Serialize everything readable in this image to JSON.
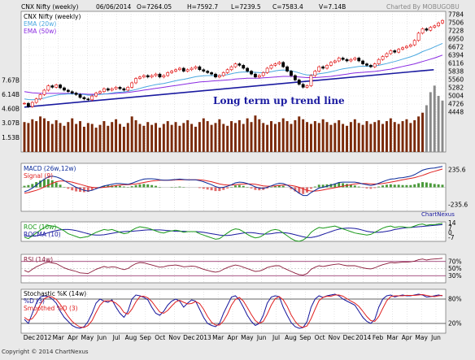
{
  "header": {
    "symbol": "CNX Nifty (weekly)",
    "date": "06/06/2014",
    "open": "O=7264.05",
    "high": "H=7592.7",
    "low": "L=7239.5",
    "close": "C=7583.4",
    "volume": "V=7.14B",
    "credit": "Charted By MOBUGOBU"
  },
  "footer": {
    "copyright": "Copyright © 2014 ChartNexus",
    "watermark": "ChartNexus"
  },
  "colors": {
    "up_candle": "#e00000",
    "down_candle": "#000000",
    "ema20": "#4aa8e0",
    "ema50": "#8a2be2",
    "trend": "#1a1aa0",
    "volume": "#7a2a0a",
    "volume_recent": "#8a8a8a",
    "macd": "#0a2a9a",
    "signal": "#e02020",
    "roc": "#1a9a1a",
    "rocma": "#1a1aa0",
    "rsi": "#8a1a3a",
    "stoch_k": "#1a1aa0",
    "stoch_d": "#e02020",
    "stoch_sd": "#e02020"
  },
  "chart_data": {
    "type": "line",
    "x_labels": [
      "Dec",
      "2012",
      "Mar",
      "Apr",
      "May",
      "Jun",
      "Jul",
      "Aug",
      "Sep",
      "Oct",
      "Nov",
      "Dec",
      "2013",
      "Mar",
      "Apr",
      "May",
      "Jun",
      "Jul",
      "Aug",
      "Sep",
      "Oct",
      "Nov",
      "Dec",
      "2014",
      "Feb",
      "Mar",
      "Apr",
      "May",
      "Jun"
    ],
    "price": {
      "legend": [
        "CNX Nifty (weekly)",
        "EMA (20w)",
        "EMA (50w)"
      ],
      "price_ticks": [
        "7784",
        "7506",
        "7228",
        "6950",
        "6672",
        "6394",
        "6116",
        "5838",
        "5560",
        "5282",
        "5004",
        "4726",
        "4448"
      ],
      "volume_ticks": [
        "7.67B",
        "6.14B",
        "4.60B",
        "3.07B",
        "1.53B"
      ],
      "ylim": [
        4448,
        7784
      ],
      "close": [
        4750,
        4640,
        4780,
        4900,
        5050,
        5200,
        5350,
        5300,
        5380,
        5280,
        5200,
        5150,
        5100,
        5050,
        4950,
        4900,
        4870,
        5000,
        5100,
        5150,
        5250,
        5200,
        5250,
        5300,
        5250,
        5200,
        5300,
        5450,
        5600,
        5650,
        5700,
        5650,
        5700,
        5750,
        5650,
        5700,
        5800,
        5850,
        5900,
        5950,
        5850,
        5900,
        5950,
        6000,
        5900,
        5850,
        5800,
        5750,
        5650,
        5700,
        5800,
        5900,
        6000,
        6100,
        6050,
        5950,
        5850,
        5750,
        5650,
        5700,
        5800,
        5950,
        6050,
        6100,
        6150,
        6000,
        5850,
        5700,
        5550,
        5400,
        5300,
        5350,
        5700,
        5850,
        6000,
        5950,
        6050,
        6150,
        6200,
        6300,
        6250,
        6200,
        6250,
        6300,
        6200,
        6100,
        6050,
        6000,
        6100,
        6250,
        6350,
        6450,
        6550,
        6500,
        6600,
        6650,
        6700,
        6750,
        6900,
        7150,
        7300,
        7250,
        7350,
        7400,
        7500,
        7583
      ],
      "ema20": [
        4900,
        4880,
        4870,
        4880,
        4900,
        4930,
        4970,
        5000,
        5030,
        5050,
        5060,
        5070,
        5070,
        5070,
        5060,
        5050,
        5030,
        5030,
        5040,
        5050,
        5070,
        5080,
        5100,
        5120,
        5130,
        5140,
        5160,
        5190,
        5220,
        5260,
        5300,
        5330,
        5360,
        5390,
        5410,
        5430,
        5460,
        5490,
        5520,
        5550,
        5570,
        5600,
        5630,
        5660,
        5680,
        5690,
        5700,
        5700,
        5700,
        5700,
        5710,
        5730,
        5760,
        5790,
        5810,
        5820,
        5820,
        5820,
        5810,
        5800,
        5800,
        5810,
        5830,
        5860,
        5880,
        5890,
        5880,
        5860,
        5830,
        5790,
        5750,
        5720,
        5720,
        5730,
        5760,
        5780,
        5800,
        5830,
        5860,
        5900,
        5930,
        5950,
        5970,
        5990,
        6010,
        6020,
        6020,
        6020,
        6030,
        6050,
        6080,
        6110,
        6150,
        6180,
        6220,
        6260,
        6300,
        6340,
        6390,
        6450,
        6520,
        6570,
        6620,
        6680,
        6740,
        6800
      ],
      "ema50": [
        5150,
        5130,
        5110,
        5100,
        5090,
        5090,
        5090,
        5090,
        5090,
        5090,
        5090,
        5090,
        5090,
        5080,
        5080,
        5070,
        5060,
        5060,
        5060,
        5060,
        5070,
        5070,
        5080,
        5090,
        5100,
        5110,
        5120,
        5140,
        5160,
        5180,
        5200,
        5220,
        5240,
        5260,
        5280,
        5300,
        5320,
        5340,
        5360,
        5380,
        5400,
        5420,
        5440,
        5460,
        5480,
        5490,
        5500,
        5510,
        5520,
        5530,
        5540,
        5550,
        5560,
        5580,
        5590,
        5600,
        5610,
        5610,
        5610,
        5610,
        5620,
        5630,
        5640,
        5650,
        5660,
        5670,
        5670,
        5670,
        5660,
        5650,
        5640,
        5630,
        5630,
        5630,
        5640,
        5650,
        5660,
        5670,
        5690,
        5710,
        5730,
        5750,
        5770,
        5790,
        5800,
        5810,
        5820,
        5830,
        5840,
        5860,
        5880,
        5900,
        5920,
        5950,
        5980,
        6010,
        6040,
        6070,
        6100,
        6140,
        6180,
        6220,
        6260,
        6300,
        6350,
        6400
      ],
      "trendline": [
        [
          0,
          4620
        ],
        [
          102,
          5900
        ]
      ],
      "annotation": "Long term up trend line",
      "volume": [
        3.2,
        3.1,
        3.5,
        3.3,
        3.8,
        3.6,
        3.3,
        3.0,
        3.4,
        3.1,
        2.8,
        3.2,
        3.6,
        3.0,
        3.3,
        2.7,
        3.1,
        3.0,
        2.6,
        2.9,
        3.3,
        2.8,
        3.2,
        3.5,
        3.0,
        2.7,
        3.1,
        3.8,
        3.4,
        3.0,
        2.8,
        3.2,
        2.9,
        3.1,
        2.6,
        3.0,
        3.3,
        2.9,
        3.2,
        2.8,
        3.1,
        3.4,
        3.0,
        2.7,
        3.2,
        3.6,
        3.3,
        2.9,
        3.1,
        3.5,
        3.0,
        2.8,
        3.3,
        3.1,
        3.4,
        3.0,
        3.6,
        3.2,
        3.9,
        3.5,
        3.1,
        2.9,
        3.3,
        3.0,
        3.2,
        3.6,
        3.3,
        3.0,
        3.4,
        3.8,
        3.5,
        3.2,
        3.0,
        3.3,
        3.1,
        3.5,
        3.2,
        2.9,
        3.1,
        3.4,
        3.0,
        2.8,
        3.2,
        3.5,
        3.1,
        2.9,
        3.3,
        3.0,
        3.2,
        3.4,
        3.0,
        3.3,
        3.6,
        3.2,
        3.0,
        3.3,
        3.5,
        3.1,
        3.4,
        3.8,
        4.2,
        5.0,
        6.4,
        7.1,
        6.0,
        5.5
      ]
    },
    "macd": {
      "legend": [
        "MACD (26w,12w)",
        "Signal (9)"
      ],
      "ticks": [
        "235.6",
        "0",
        "-235.6"
      ],
      "ylim": [
        -300,
        300
      ],
      "macd": [
        -60,
        -40,
        -10,
        30,
        70,
        110,
        140,
        150,
        140,
        120,
        90,
        60,
        30,
        0,
        -20,
        -40,
        -50,
        -40,
        -20,
        0,
        20,
        30,
        40,
        50,
        50,
        45,
        40,
        55,
        75,
        95,
        110,
        115,
        115,
        110,
        100,
        95,
        95,
        100,
        105,
        110,
        105,
        100,
        100,
        100,
        90,
        75,
        55,
        35,
        10,
        -5,
        0,
        15,
        35,
        60,
        70,
        65,
        50,
        30,
        5,
        -10,
        -15,
        0,
        20,
        40,
        55,
        50,
        30,
        0,
        -40,
        -80,
        -110,
        -110,
        -70,
        -40,
        -10,
        0,
        15,
        30,
        45,
        65,
        70,
        70,
        70,
        70,
        60,
        45,
        35,
        25,
        35,
        55,
        75,
        95,
        110,
        115,
        125,
        130,
        140,
        150,
        170,
        200,
        230,
        245,
        255,
        260,
        270,
        280
      ],
      "signal": [
        -80,
        -70,
        -55,
        -40,
        -20,
        5,
        30,
        55,
        75,
        85,
        85,
        80,
        70,
        55,
        40,
        25,
        10,
        0,
        -5,
        -5,
        0,
        5,
        15,
        25,
        30,
        35,
        35,
        40,
        45,
        55,
        65,
        75,
        85,
        90,
        95,
        95,
        95,
        95,
        100,
        100,
        100,
        100,
        100,
        100,
        100,
        95,
        85,
        75,
        60,
        45,
        35,
        30,
        30,
        35,
        40,
        45,
        45,
        45,
        40,
        30,
        20,
        15,
        15,
        20,
        25,
        30,
        30,
        25,
        15,
        0,
        -20,
        -40,
        -50,
        -50,
        -45,
        -35,
        -25,
        -15,
        -5,
        5,
        15,
        25,
        35,
        45,
        50,
        50,
        50,
        45,
        45,
        45,
        50,
        60,
        70,
        80,
        90,
        100,
        110,
        120,
        130,
        145,
        160,
        180,
        200,
        215,
        230,
        245
      ],
      "histogram": [
        20,
        30,
        45,
        70,
        90,
        105,
        110,
        95,
        65,
        35,
        5,
        -20,
        -40,
        -55,
        -60,
        -65,
        -60,
        -40,
        -15,
        5,
        20,
        25,
        25,
        25,
        20,
        10,
        5,
        15,
        30,
        40,
        45,
        40,
        30,
        20,
        5,
        0,
        0,
        5,
        5,
        10,
        5,
        0,
        0,
        0,
        -10,
        -20,
        -30,
        -40,
        -50,
        -50,
        -35,
        -15,
        5,
        25,
        30,
        20,
        5,
        -15,
        -35,
        -40,
        -35,
        -15,
        5,
        20,
        30,
        20,
        0,
        -25,
        -55,
        -80,
        -90,
        -70,
        -20,
        10,
        35,
        35,
        40,
        45,
        50,
        60,
        55,
        45,
        35,
        25,
        10,
        -5,
        -15,
        -20,
        -10,
        10,
        25,
        35,
        40,
        35,
        35,
        30,
        30,
        30,
        40,
        55,
        70,
        65,
        55,
        45,
        40,
        35
      ]
    },
    "roc": {
      "legend": [
        "ROC (10w)",
        "ROCMA (10)"
      ],
      "ticks": [
        "14",
        "7",
        "0",
        "-7"
      ],
      "ylim": [
        -12,
        16
      ],
      "roc": [
        -6,
        -8,
        -4,
        0,
        4,
        8,
        11,
        10,
        9,
        6,
        3,
        -1,
        -3,
        -5,
        -7,
        -6,
        -5,
        -2,
        1,
        3,
        5,
        4,
        5,
        3,
        1,
        -1,
        0,
        4,
        7,
        9,
        8,
        7,
        5,
        3,
        1,
        0,
        2,
        3,
        4,
        3,
        1,
        2,
        2,
        2,
        -1,
        -3,
        -5,
        -7,
        -9,
        -8,
        -4,
        0,
        4,
        6,
        5,
        2,
        -2,
        -5,
        -7,
        -6,
        -3,
        1,
        4,
        5,
        4,
        0,
        -4,
        -8,
        -11,
        -12,
        -10,
        -6,
        1,
        5,
        8,
        7,
        8,
        9,
        10,
        8,
        6,
        4,
        2,
        0,
        -1,
        -2,
        -3,
        -2,
        1,
        4,
        7,
        9,
        10,
        8,
        9,
        9,
        8,
        8,
        10,
        12,
        13,
        11,
        12,
        12,
        13,
        14
      ],
      "rocma": [
        -4,
        -4.5,
        -4.5,
        -4,
        -3,
        -1.5,
        0.5,
        2,
        3.5,
        4.5,
        5,
        5,
        4.5,
        3.5,
        2,
        0.5,
        -1,
        -2.5,
        -3,
        -3,
        -2.5,
        -1.5,
        -0.5,
        0.5,
        1.5,
        2,
        2.5,
        2.5,
        3,
        3.5,
        4,
        4.5,
        4.5,
        4.5,
        4.5,
        4,
        3.5,
        3,
        2.5,
        2.5,
        2.5,
        2,
        2,
        2,
        1.5,
        1,
        0,
        -1,
        -2,
        -3,
        -3.5,
        -3.5,
        -3,
        -2,
        -1,
        0,
        0.5,
        0.5,
        0,
        -1,
        -1.5,
        -1.5,
        -1,
        0,
        0.5,
        0.5,
        0,
        -1,
        -2.5,
        -4,
        -5.5,
        -6.5,
        -6.5,
        -5.5,
        -4,
        -2,
        0,
        2,
        4,
        5.5,
        6.5,
        7,
        7,
        6.5,
        5.5,
        4,
        2.5,
        1.5,
        1,
        1,
        1.5,
        2.5,
        3.5,
        5,
        6,
        7,
        7.5,
        8,
        8.5,
        9,
        9.5,
        10,
        10.5,
        11,
        11.5,
        12
      ]
    },
    "rsi": {
      "legend": [
        "RSI (14w)"
      ],
      "ticks": [
        "70%",
        "50%",
        "30%"
      ],
      "ylim": [
        10,
        90
      ],
      "rsi": [
        45,
        40,
        48,
        55,
        60,
        65,
        68,
        66,
        64,
        58,
        52,
        48,
        45,
        42,
        38,
        37,
        36,
        42,
        48,
        52,
        56,
        53,
        55,
        54,
        50,
        47,
        50,
        58,
        64,
        67,
        66,
        63,
        60,
        57,
        54,
        55,
        58,
        59,
        60,
        58,
        55,
        56,
        57,
        56,
        52,
        48,
        45,
        42,
        40,
        42,
        48,
        53,
        57,
        60,
        58,
        54,
        50,
        46,
        42,
        43,
        47,
        53,
        56,
        58,
        58,
        52,
        47,
        42,
        37,
        33,
        32,
        36,
        48,
        54,
        58,
        56,
        58,
        60,
        62,
        63,
        60,
        58,
        58,
        58,
        55,
        52,
        50,
        49,
        52,
        57,
        61,
        64,
        67,
        66,
        67,
        68,
        68,
        69,
        71,
        75,
        77,
        74,
        76,
        77,
        78,
        79
      ],
      "levels": [
        70,
        30
      ]
    },
    "stochastic": {
      "legend": [
        "Stochastic %K (14w)",
        "%D (3)",
        "Smoothed %D (3)"
      ],
      "ticks": [
        "80%",
        "20%"
      ],
      "ylim": [
        0,
        100
      ],
      "k": [
        30,
        20,
        45,
        70,
        85,
        88,
        86,
        80,
        70,
        50,
        35,
        25,
        15,
        10,
        8,
        12,
        25,
        45,
        70,
        80,
        75,
        72,
        78,
        60,
        45,
        35,
        50,
        80,
        90,
        88,
        84,
        78,
        60,
        45,
        40,
        50,
        65,
        75,
        80,
        75,
        60,
        70,
        78,
        75,
        55,
        35,
        20,
        15,
        12,
        20,
        45,
        65,
        85,
        88,
        78,
        60,
        40,
        25,
        15,
        20,
        40,
        70,
        85,
        88,
        86,
        60,
        40,
        22,
        12,
        8,
        10,
        25,
        60,
        80,
        88,
        84,
        88,
        90,
        92,
        88,
        80,
        75,
        70,
        65,
        50,
        35,
        25,
        20,
        30,
        60,
        80,
        88,
        90,
        85,
        88,
        90,
        88,
        88,
        90,
        92,
        90,
        85,
        86,
        88,
        90,
        88
      ],
      "d": [
        35,
        28,
        32,
        45,
        67,
        81,
        86,
        85,
        79,
        67,
        52,
        37,
        25,
        17,
        11,
        10,
        15,
        27,
        47,
        65,
        75,
        76,
        75,
        70,
        61,
        47,
        43,
        55,
        73,
        86,
        87,
        83,
        74,
        61,
        48,
        45,
        52,
        63,
        73,
        77,
        72,
        68,
        69,
        74,
        69,
        55,
        37,
        23,
        16,
        16,
        26,
        43,
        65,
        79,
        84,
        75,
        59,
        42,
        27,
        20,
        25,
        43,
        65,
        81,
        86,
        78,
        62,
        41,
        25,
        14,
        10,
        14,
        32,
        55,
        76,
        84,
        87,
        87,
        90,
        90,
        87,
        81,
        75,
        70,
        62,
        50,
        37,
        27,
        25,
        37,
        57,
        76,
        86,
        88,
        88,
        88,
        89,
        89,
        89,
        90,
        91,
        89,
        87,
        86,
        88,
        89
      ]
    }
  }
}
